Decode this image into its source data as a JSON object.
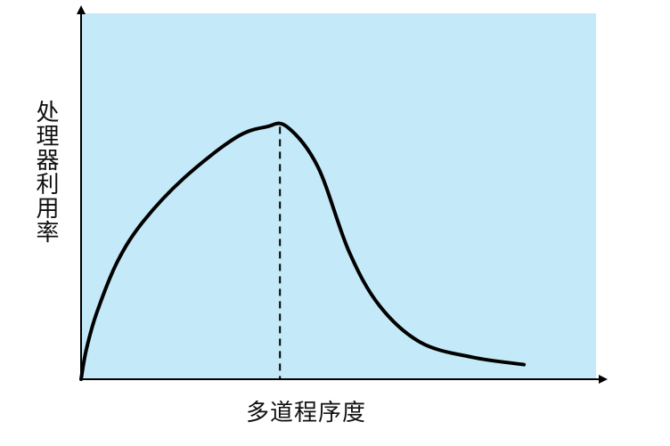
{
  "chart_data": {
    "type": "line",
    "xlabel": "多道程序度",
    "ylabel": "处理器利用率",
    "xlim": [
      0,
      1
    ],
    "ylim": [
      0,
      1
    ],
    "grid": false,
    "legend": "none",
    "series": [
      {
        "values": [
          {
            "x": 0.0,
            "y": 0.0
          },
          {
            "x": 0.01,
            "y": 0.08
          },
          {
            "x": 0.03,
            "y": 0.18
          },
          {
            "x": 0.07,
            "y": 0.32
          },
          {
            "x": 0.12,
            "y": 0.43
          },
          {
            "x": 0.2,
            "y": 0.55
          },
          {
            "x": 0.3,
            "y": 0.66
          },
          {
            "x": 0.36,
            "y": 0.69
          },
          {
            "x": 0.4,
            "y": 0.69
          },
          {
            "x": 0.46,
            "y": 0.58
          },
          {
            "x": 0.52,
            "y": 0.35
          },
          {
            "x": 0.58,
            "y": 0.2
          },
          {
            "x": 0.66,
            "y": 0.1
          },
          {
            "x": 0.76,
            "y": 0.06
          },
          {
            "x": 0.86,
            "y": 0.04
          }
        ]
      }
    ],
    "peak": {
      "x": 0.4,
      "y": 0.69
    },
    "colors": {
      "plot_background": "#c4e9f8",
      "line": "#000000",
      "axis": "#000000"
    }
  }
}
